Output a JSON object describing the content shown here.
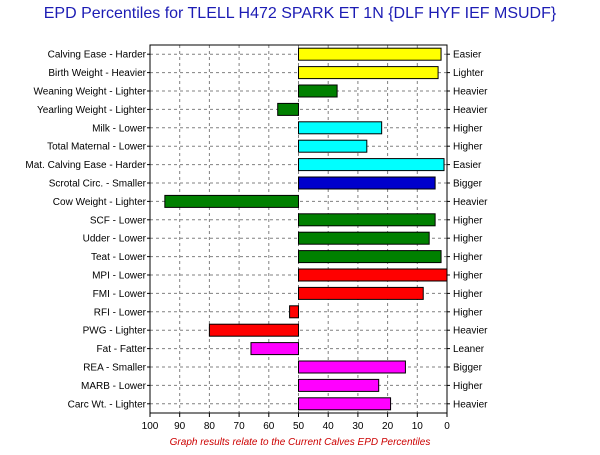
{
  "chart_data": {
    "type": "bar",
    "orientation": "horizontal",
    "title": "EPD Percentiles for TLELL H472 SPARK ET 1N {DLF HYF IEF MSUDF}",
    "footnote": "Graph results relate to the Current Calves EPD Percentiles",
    "x_ticks": [
      "100",
      "90",
      "80",
      "70",
      "60",
      "50",
      "40",
      "30",
      "20",
      "10",
      "0"
    ],
    "xlim": [
      100,
      0
    ],
    "baseline": 50,
    "grid": true,
    "rows": [
      {
        "left": "Calving Ease - Harder",
        "right": "Easier",
        "value": 2,
        "color": "#ffff00"
      },
      {
        "left": "Birth Weight - Heavier",
        "right": "Lighter",
        "value": 3,
        "color": "#ffff00"
      },
      {
        "left": "Weaning Weight - Lighter",
        "right": "Heavier",
        "value": 37,
        "color": "#008000"
      },
      {
        "left": "Yearling Weight - Lighter",
        "right": "Heavier",
        "value": 57,
        "color": "#008000"
      },
      {
        "left": "Milk - Lower",
        "right": "Higher",
        "value": 22,
        "color": "#00ffff"
      },
      {
        "left": "Total Maternal - Lower",
        "right": "Higher",
        "value": 27,
        "color": "#00ffff"
      },
      {
        "left": "Mat. Calving Ease - Harder",
        "right": "Easier",
        "value": 1,
        "color": "#00ffff"
      },
      {
        "left": "Scrotal Circ. - Smaller",
        "right": "Bigger",
        "value": 4,
        "color": "#0000cc"
      },
      {
        "left": "Cow Weight - Lighter",
        "right": "Heavier",
        "value": 95,
        "color": "#008000"
      },
      {
        "left": "SCF - Lower",
        "right": "Higher",
        "value": 4,
        "color": "#008000"
      },
      {
        "left": "Udder - Lower",
        "right": "Higher",
        "value": 6,
        "color": "#008000"
      },
      {
        "left": "Teat - Lower",
        "right": "Higher",
        "value": 2,
        "color": "#008000"
      },
      {
        "left": "MPI - Lower",
        "right": "Higher",
        "value": 0,
        "color": "#ff0000"
      },
      {
        "left": "FMI - Lower",
        "right": "Higher",
        "value": 8,
        "color": "#ff0000"
      },
      {
        "left": "RFI - Lower",
        "right": "Higher",
        "value": 53,
        "color": "#ff0000"
      },
      {
        "left": "PWG - Lighter",
        "right": "Heavier",
        "value": 80,
        "color": "#ff0000"
      },
      {
        "left": "Fat - Fatter",
        "right": "Leaner",
        "value": 66,
        "color": "#ff00ff"
      },
      {
        "left": "REA - Smaller",
        "right": "Bigger",
        "value": 14,
        "color": "#ff00ff"
      },
      {
        "left": "MARB - Lower",
        "right": "Higher",
        "value": 23,
        "color": "#ff00ff"
      },
      {
        "left": "Carc Wt. - Lighter",
        "right": "Heavier",
        "value": 19,
        "color": "#ff00ff"
      }
    ]
  }
}
